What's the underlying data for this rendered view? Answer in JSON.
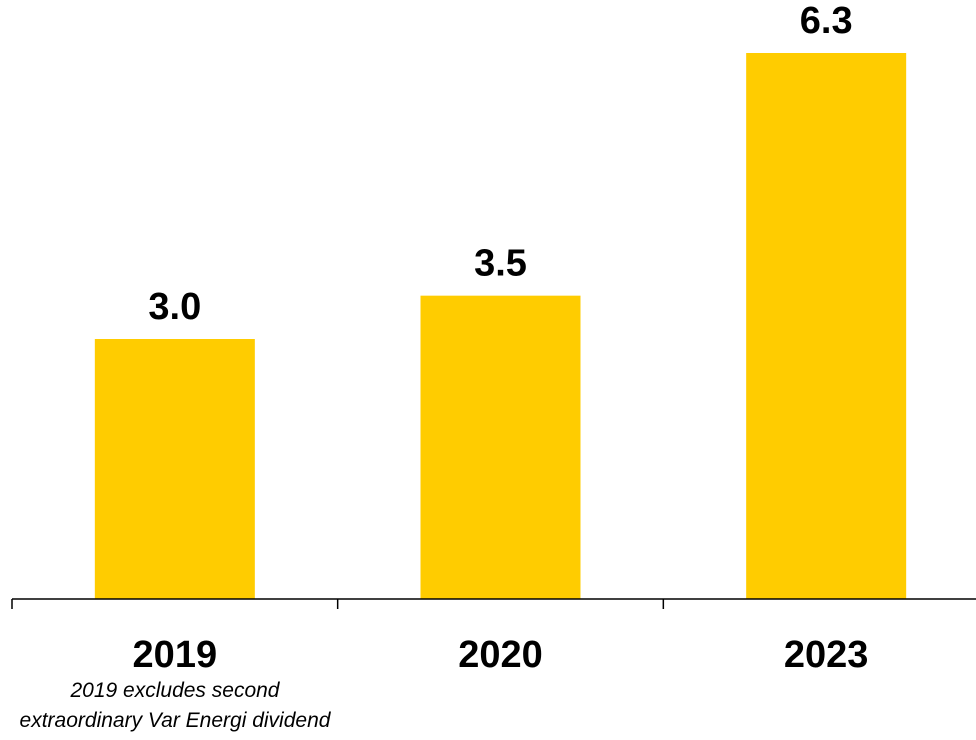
{
  "chart_data": {
    "type": "bar",
    "categories": [
      "2019",
      "2020",
      "2023"
    ],
    "values": [
      3.0,
      3.5,
      6.3
    ],
    "value_labels": [
      "3.0",
      "3.5",
      "6.3"
    ],
    "title": "",
    "xlabel": "",
    "ylabel": "",
    "ylim": [
      0,
      6.3
    ],
    "grid": false,
    "legend": "none",
    "bar_color": "#FFCC00",
    "axis_color": "#000000",
    "annotations": [
      "2019 excludes second",
      "extraordinary Var Energi dividend"
    ]
  }
}
